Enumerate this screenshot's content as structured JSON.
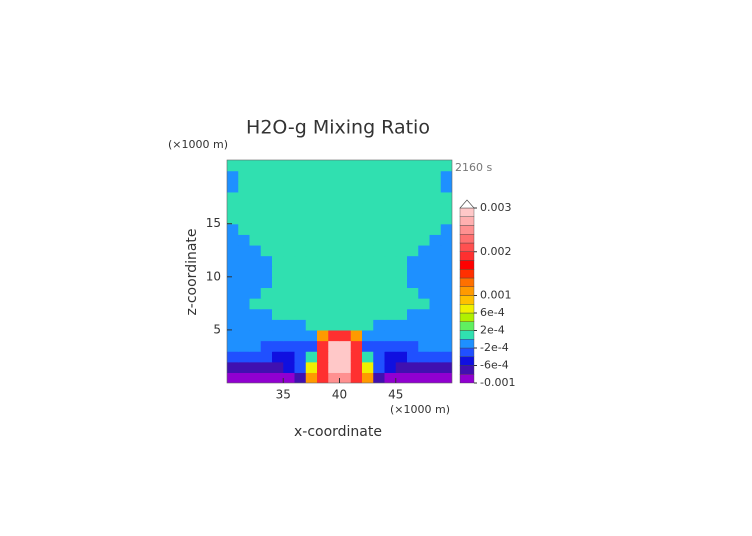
{
  "chart_data": {
    "type": "contour",
    "title": "H2O-g Mixing Ratio",
    "time_label": "2160 s",
    "x_label": "x-coordinate",
    "y_label": "z-coordinate",
    "x_unit": "(×1000 m)",
    "y_unit": "(×1000 m)",
    "xlim": [
      30,
      50
    ],
    "ylim": [
      0,
      21
    ],
    "xticks": [
      35,
      40,
      45
    ],
    "yticks": [
      5,
      10,
      15
    ],
    "x": [
      30.5,
      31.5,
      32.5,
      33.5,
      34.5,
      35.5,
      36.5,
      37.5,
      38.5,
      39.5,
      40.5,
      41.5,
      42.5,
      43.5,
      44.5,
      45.5,
      46.5,
      47.5,
      48.5,
      49.5
    ],
    "y": [
      0.5,
      1.5,
      2.5,
      3.5,
      4.5,
      5.5,
      6.5,
      7.5,
      8.5,
      9.5,
      10.5,
      11.5,
      12.5,
      13.5,
      14.5,
      15.5,
      16.5,
      17.5,
      18.5,
      19.5,
      20.5
    ],
    "z": [
      [
        -0.0009,
        -0.0009,
        -0.0009,
        -0.0009,
        -0.0009,
        -0.0009,
        -0.0007,
        0.0011,
        0.0019,
        0.0025,
        0.0025,
        0.0019,
        0.0011,
        -0.0007,
        -0.0009,
        -0.0009,
        -0.0009,
        -0.0009,
        -0.0009,
        -0.0009
      ],
      [
        -0.0007,
        -0.0007,
        -0.0007,
        -0.0007,
        -0.0007,
        -0.0005,
        -0.0003,
        0.0007,
        0.0019,
        0.0029,
        0.0029,
        0.0019,
        0.0007,
        -0.0003,
        -0.0005,
        -0.0007,
        -0.0007,
        -0.0007,
        -0.0007,
        -0.0007
      ],
      [
        -0.0003,
        -0.0003,
        -0.0003,
        -0.0003,
        -0.0005,
        -0.0005,
        -0.0003,
        0.0001,
        0.0019,
        0.0029,
        0.0029,
        0.0019,
        0.0001,
        -0.0003,
        -0.0005,
        -0.0005,
        -0.0003,
        -0.0003,
        -0.0003,
        -0.0003
      ],
      [
        -0.0001,
        -0.0001,
        -0.0001,
        -0.0003,
        -0.0003,
        -0.0003,
        -0.0003,
        -0.0003,
        0.0019,
        0.0029,
        0.0029,
        0.0019,
        -0.0003,
        -0.0003,
        -0.0003,
        -0.0003,
        -0.0003,
        -0.0001,
        -0.0001,
        -0.0001
      ],
      [
        -0.0001,
        -0.0001,
        -0.0001,
        -0.0001,
        -0.0001,
        -0.0001,
        -0.0001,
        -0.0001,
        0.0011,
        0.0019,
        0.0019,
        0.0011,
        -0.0001,
        -0.0001,
        -0.0001,
        -0.0001,
        -0.0001,
        -0.0001,
        -0.0001,
        -0.0001
      ],
      [
        -0.0001,
        -0.0001,
        -0.0001,
        -0.0001,
        -0.0001,
        -0.0001,
        -0.0001,
        0.0001,
        0.0001,
        0.0001,
        0.0001,
        0.0001,
        0.0001,
        -0.0001,
        -0.0001,
        -0.0001,
        -0.0001,
        -0.0001,
        -0.0001,
        -0.0001
      ],
      [
        -0.0001,
        -0.0001,
        -0.0001,
        -0.0001,
        0.0001,
        0.0001,
        0.0001,
        0.0001,
        0.0001,
        0.0001,
        0.0001,
        0.0001,
        0.0001,
        0.0001,
        0.0001,
        0.0001,
        -0.0001,
        -0.0001,
        -0.0001,
        -0.0001
      ],
      [
        -0.0001,
        -0.0001,
        0.0001,
        0.0001,
        0.0001,
        0.0001,
        0.0001,
        0.0001,
        0.0001,
        0.0001,
        0.0001,
        0.0001,
        0.0001,
        0.0001,
        0.0001,
        0.0001,
        0.0001,
        0.0001,
        -0.0001,
        -0.0001
      ],
      [
        -0.0001,
        -0.0001,
        -0.0001,
        0.0001,
        0.0001,
        0.0001,
        0.0001,
        0.0001,
        0.0001,
        0.0001,
        0.0001,
        0.0001,
        0.0001,
        0.0001,
        0.0001,
        0.0001,
        0.0001,
        -0.0001,
        -0.0001,
        -0.0001
      ],
      [
        -0.0001,
        -0.0001,
        -0.0001,
        -0.0001,
        0.0001,
        0.0001,
        0.0001,
        0.0001,
        0.0001,
        0.0001,
        0.0001,
        0.0001,
        0.0001,
        0.0001,
        0.0001,
        0.0001,
        -0.0001,
        -0.0001,
        -0.0001,
        -0.0001
      ],
      [
        -0.0001,
        -0.0001,
        -0.0001,
        -0.0001,
        0.0001,
        0.0001,
        0.0001,
        0.0001,
        0.0001,
        0.0001,
        0.0001,
        0.0001,
        0.0001,
        0.0001,
        0.0001,
        0.0001,
        -0.0001,
        -0.0001,
        -0.0001,
        -0.0001
      ],
      [
        -0.0001,
        -0.0001,
        -0.0001,
        -0.0001,
        0.0001,
        0.0001,
        0.0001,
        0.0001,
        0.0001,
        0.0001,
        0.0001,
        0.0001,
        0.0001,
        0.0001,
        0.0001,
        0.0001,
        -0.0001,
        -0.0001,
        -0.0001,
        -0.0001
      ],
      [
        -0.0001,
        -0.0001,
        -0.0001,
        0.0001,
        0.0001,
        0.0001,
        0.0001,
        0.0001,
        0.0001,
        0.0001,
        0.0001,
        0.0001,
        0.0001,
        0.0001,
        0.0001,
        0.0001,
        0.0001,
        -0.0001,
        -0.0001,
        -0.0001
      ],
      [
        -0.0001,
        -0.0001,
        0.0001,
        0.0001,
        0.0001,
        0.0001,
        0.0001,
        0.0001,
        0.0001,
        0.0001,
        0.0001,
        0.0001,
        0.0001,
        0.0001,
        0.0001,
        0.0001,
        0.0001,
        0.0001,
        -0.0001,
        -0.0001
      ],
      [
        -0.0001,
        0.0001,
        0.0001,
        0.0001,
        0.0001,
        0.0001,
        0.0001,
        0.0001,
        0.0001,
        0.0001,
        0.0001,
        0.0001,
        0.0001,
        0.0001,
        0.0001,
        0.0001,
        0.0001,
        0.0001,
        0.0001,
        -0.0001
      ],
      [
        0.0001,
        0.0001,
        0.0001,
        0.0001,
        0.0001,
        0.0001,
        0.0001,
        0.0001,
        0.0001,
        0.0001,
        0.0001,
        0.0001,
        0.0001,
        0.0001,
        0.0001,
        0.0001,
        0.0001,
        0.0001,
        0.0001,
        0.0001
      ],
      [
        0.0001,
        0.0001,
        0.0001,
        0.0001,
        0.0001,
        0.0001,
        0.0001,
        0.0001,
        0.0001,
        0.0001,
        0.0001,
        0.0001,
        0.0001,
        0.0001,
        0.0001,
        0.0001,
        0.0001,
        0.0001,
        0.0001,
        0.0001
      ],
      [
        0.0001,
        0.0001,
        0.0001,
        0.0001,
        0.0001,
        0.0001,
        0.0001,
        0.0001,
        0.0001,
        0.0001,
        0.0001,
        0.0001,
        0.0001,
        0.0001,
        0.0001,
        0.0001,
        0.0001,
        0.0001,
        0.0001,
        0.0001
      ],
      [
        -0.0001,
        0.0001,
        0.0001,
        0.0001,
        0.0001,
        0.0001,
        0.0001,
        0.0001,
        0.0001,
        0.0001,
        0.0001,
        0.0001,
        0.0001,
        0.0001,
        0.0001,
        0.0001,
        0.0001,
        0.0001,
        0.0001,
        -0.0001
      ],
      [
        -0.0001,
        0.0001,
        0.0001,
        0.0001,
        0.0001,
        0.0001,
        0.0001,
        0.0001,
        0.0001,
        0.0001,
        0.0001,
        0.0001,
        0.0001,
        0.0001,
        0.0001,
        0.0001,
        0.0001,
        0.0001,
        0.0001,
        -0.0001
      ],
      [
        0.0001,
        0.0001,
        0.0001,
        0.0001,
        0.0001,
        0.0001,
        0.0001,
        0.0001,
        0.0001,
        0.0001,
        0.0001,
        0.0001,
        0.0001,
        0.0001,
        0.0001,
        0.0001,
        0.0001,
        0.0001,
        0.0001,
        0.0001
      ]
    ],
    "levels": [
      -0.001,
      -0.0008,
      -0.0006,
      -0.0004,
      -0.0002,
      0,
      0.0002,
      0.0004,
      0.0006,
      0.0008,
      0.001,
      0.0012,
      0.0014,
      0.0016,
      0.0018,
      0.002,
      0.0022,
      0.0024,
      0.0026,
      0.0028,
      0.003
    ],
    "colors": [
      "#9000d0",
      "#4010b0",
      "#1010e0",
      "#2050ff",
      "#1e90ff",
      "#30e0b0",
      "#60f060",
      "#b0f000",
      "#f0f000",
      "#ffc000",
      "#ff9a00",
      "#ff7000",
      "#ff3000",
      "#ff0000",
      "#ff3030",
      "#ff5050",
      "#ff7070",
      "#ff9090",
      "#ffb0b0",
      "#ffc8c8"
    ],
    "extend_color": "#ffffff",
    "cbar_ticks": [
      0.003,
      0.002,
      0.001,
      {
        "value": 0.0006,
        "label": "6e-4"
      },
      {
        "value": 0.0002,
        "label": "2e-4"
      },
      {
        "value": -0.0002,
        "label": "-2e-4"
      },
      {
        "value": -0.0006,
        "label": "-6e-4"
      },
      -0.001
    ]
  }
}
